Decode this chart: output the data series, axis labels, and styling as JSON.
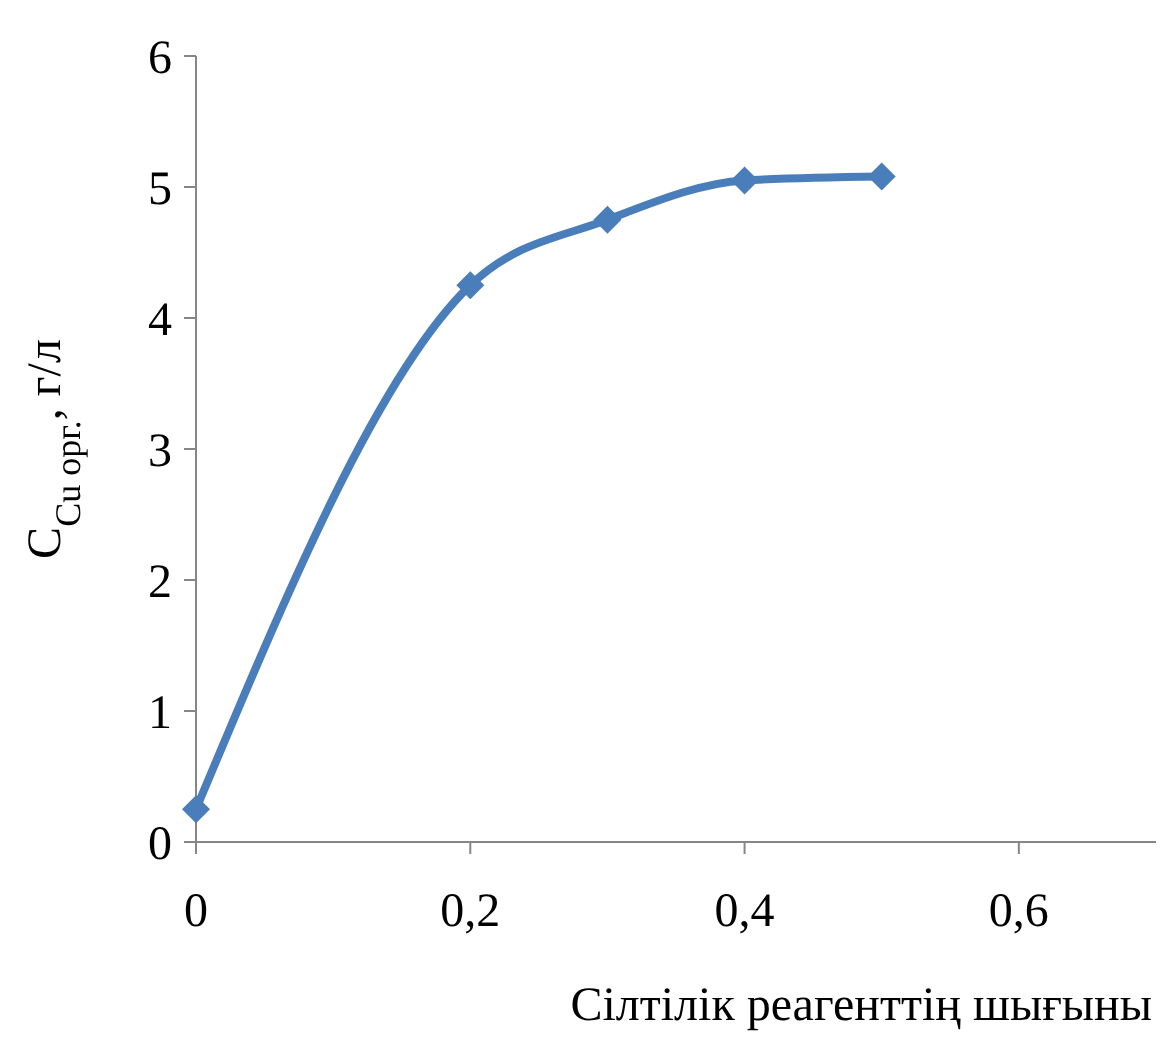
{
  "chart_data": {
    "type": "line",
    "xlabel": "Сілтілік реагенттің шығыны",
    "ylabel": "C$_{Cu орг.}$, г/л",
    "x": [
      0,
      0.2,
      0.3,
      0.4,
      0.5
    ],
    "series": [
      {
        "color": "#4a7ebb",
        "values": [
          0.25,
          4.25,
          4.75,
          5.05,
          5.08
        ]
      }
    ],
    "xlim": [
      0,
      0.7
    ],
    "xticks": [
      0,
      {
        "value": 0.2,
        "label": "0,2"
      },
      {
        "value": 0.4,
        "label": "0,4"
      },
      {
        "value": 0.6,
        "label": "0,6"
      }
    ],
    "ylim": [
      0,
      6
    ],
    "yticks": [
      0,
      1,
      2,
      3,
      4,
      5,
      6
    ],
    "grid": false,
    "marker": "diamond",
    "line_style": "solid"
  }
}
